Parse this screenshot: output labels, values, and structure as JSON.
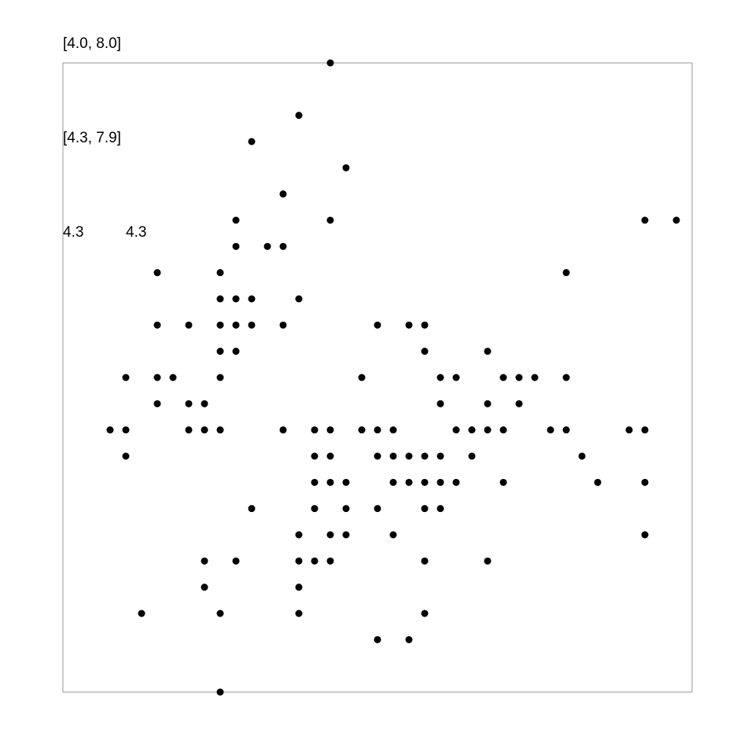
{
  "chart_data": {
    "type": "scatter",
    "annotations": {
      "range_label": "[4.0, 8.0]",
      "data_range_label": "[4.3, 7.9]",
      "min_label_a": "4.3",
      "min_label_b": "4.3"
    },
    "xlim": [
      4.0,
      8.0
    ],
    "ylim": [
      2.0,
      4.4
    ],
    "grid": false,
    "legend": "none",
    "points_color": "#000000",
    "frame_color": "#999999",
    "points": [
      [
        5.7,
        4.4
      ],
      [
        5.5,
        4.2
      ],
      [
        5.2,
        4.1
      ],
      [
        5.8,
        4.0
      ],
      [
        5.4,
        3.9
      ],
      [
        5.1,
        3.8
      ],
      [
        5.7,
        3.8
      ],
      [
        7.7,
        3.8
      ],
      [
        7.9,
        3.8
      ],
      [
        5.1,
        3.7
      ],
      [
        5.3,
        3.7
      ],
      [
        5.4,
        3.7
      ],
      [
        4.6,
        3.6
      ],
      [
        5.0,
        3.6
      ],
      [
        7.2,
        3.6
      ],
      [
        5.0,
        3.5
      ],
      [
        5.1,
        3.5
      ],
      [
        5.2,
        3.5
      ],
      [
        5.5,
        3.5
      ],
      [
        4.6,
        3.4
      ],
      [
        4.8,
        3.4
      ],
      [
        5.0,
        3.4
      ],
      [
        5.1,
        3.4
      ],
      [
        5.2,
        3.4
      ],
      [
        5.4,
        3.4
      ],
      [
        6.0,
        3.4
      ],
      [
        6.2,
        3.4
      ],
      [
        6.3,
        3.4
      ],
      [
        5.0,
        3.3
      ],
      [
        5.1,
        3.3
      ],
      [
        6.3,
        3.3
      ],
      [
        6.7,
        3.3
      ],
      [
        4.4,
        3.2
      ],
      [
        4.6,
        3.2
      ],
      [
        4.7,
        3.2
      ],
      [
        5.0,
        3.2
      ],
      [
        5.9,
        3.2
      ],
      [
        6.4,
        3.2
      ],
      [
        6.5,
        3.2
      ],
      [
        6.8,
        3.2
      ],
      [
        6.9,
        3.2
      ],
      [
        7.0,
        3.2
      ],
      [
        7.2,
        3.2
      ],
      [
        4.6,
        3.1
      ],
      [
        4.8,
        3.1
      ],
      [
        4.9,
        3.1
      ],
      [
        6.4,
        3.1
      ],
      [
        6.7,
        3.1
      ],
      [
        6.9,
        3.1
      ],
      [
        4.3,
        3.0
      ],
      [
        4.4,
        3.0
      ],
      [
        4.8,
        3.0
      ],
      [
        4.9,
        3.0
      ],
      [
        5.0,
        3.0
      ],
      [
        5.4,
        3.0
      ],
      [
        5.6,
        3.0
      ],
      [
        5.7,
        3.0
      ],
      [
        5.9,
        3.0
      ],
      [
        6.0,
        3.0
      ],
      [
        6.1,
        3.0
      ],
      [
        6.5,
        3.0
      ],
      [
        6.6,
        3.0
      ],
      [
        6.7,
        3.0
      ],
      [
        6.8,
        3.0
      ],
      [
        7.1,
        3.0
      ],
      [
        7.2,
        3.0
      ],
      [
        7.6,
        3.0
      ],
      [
        7.7,
        3.0
      ],
      [
        4.4,
        2.9
      ],
      [
        5.6,
        2.9
      ],
      [
        5.7,
        2.9
      ],
      [
        6.0,
        2.9
      ],
      [
        6.1,
        2.9
      ],
      [
        6.2,
        2.9
      ],
      [
        6.3,
        2.9
      ],
      [
        6.4,
        2.9
      ],
      [
        6.6,
        2.9
      ],
      [
        7.3,
        2.9
      ],
      [
        5.6,
        2.8
      ],
      [
        5.7,
        2.8
      ],
      [
        5.8,
        2.8
      ],
      [
        6.1,
        2.8
      ],
      [
        6.2,
        2.8
      ],
      [
        6.3,
        2.8
      ],
      [
        6.4,
        2.8
      ],
      [
        6.5,
        2.8
      ],
      [
        6.8,
        2.8
      ],
      [
        7.4,
        2.8
      ],
      [
        7.7,
        2.8
      ],
      [
        5.2,
        2.7
      ],
      [
        5.6,
        2.7
      ],
      [
        5.8,
        2.7
      ],
      [
        6.0,
        2.7
      ],
      [
        6.3,
        2.7
      ],
      [
        6.4,
        2.7
      ],
      [
        5.5,
        2.6
      ],
      [
        5.7,
        2.6
      ],
      [
        5.8,
        2.6
      ],
      [
        6.1,
        2.6
      ],
      [
        7.7,
        2.6
      ],
      [
        4.9,
        2.5
      ],
      [
        5.1,
        2.5
      ],
      [
        5.5,
        2.5
      ],
      [
        5.6,
        2.5
      ],
      [
        5.7,
        2.5
      ],
      [
        6.3,
        2.5
      ],
      [
        6.7,
        2.5
      ],
      [
        4.9,
        2.4
      ],
      [
        5.5,
        2.4
      ],
      [
        4.5,
        2.3
      ],
      [
        5.0,
        2.3
      ],
      [
        5.5,
        2.3
      ],
      [
        6.3,
        2.3
      ],
      [
        6.0,
        2.2
      ],
      [
        6.2,
        2.2
      ],
      [
        5.0,
        2.0
      ]
    ]
  }
}
